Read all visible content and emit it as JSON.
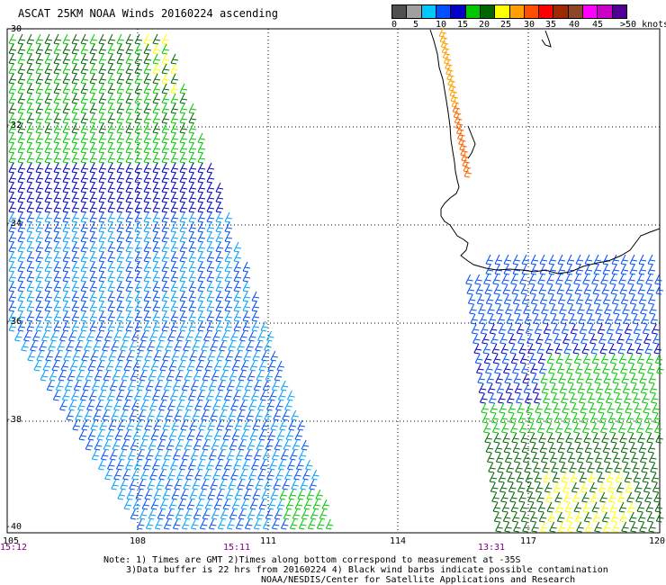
{
  "title": "ASCAT 25KM NOAA Winds 20160224 ascending",
  "legend": {
    "colors": [
      "#505050",
      "#a0a0a0",
      "#00c8ff",
      "#0050ff",
      "#0000c8",
      "#00c800",
      "#006400",
      "#ffff00",
      "#ffa000",
      "#ff5000",
      "#ff0000",
      "#a02800",
      "#8c4628",
      "#ff00ff",
      "#c800c8",
      "#500096"
    ],
    "labels": [
      "0",
      "5",
      "10",
      "15",
      "20",
      "25",
      "30",
      "35",
      "40",
      "45",
      ">50 knots"
    ]
  },
  "axes": {
    "lat_labels": [
      "-30",
      "-32",
      "-34",
      "-36",
      "-38",
      "-40"
    ],
    "lon_labels": [
      "105",
      "108",
      "111",
      "114",
      "117",
      "120"
    ]
  },
  "times": [
    "15:12",
    "15:11",
    "13:31"
  ],
  "notes": [
    "Note: 1) Times are GMT 2)Times along bottom correspond to measurement at -35S",
    "3)Data buffer is 22 hrs from 20160224 4) Black wind barbs indicate possible contamination",
    "NOAA/NESDIS/Center for Satellite Applications and Research"
  ],
  "colors": {
    "coast": "#000000",
    "grid": "#000000",
    "time_text": "#800080"
  }
}
